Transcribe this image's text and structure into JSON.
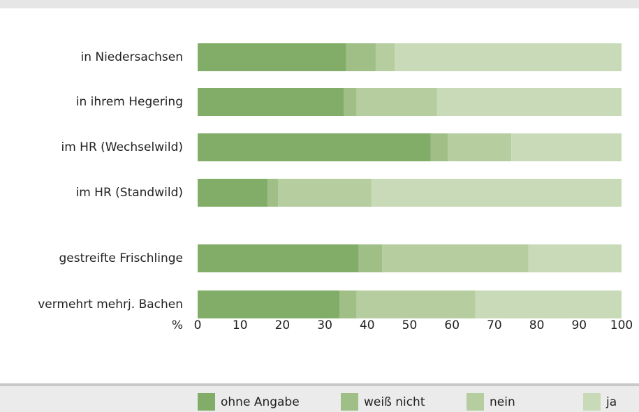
{
  "chart_data": {
    "type": "stacked-bar-horizontal",
    "categories": [
      "in Niedersachsen",
      "in ihrem Hegering",
      "im HR (Wechselwild)",
      "im HR (Standwild)",
      "gestreifte Frischlinge",
      "vermehrt mehrj. Bachen"
    ],
    "series": [
      {
        "name": "ohne Angabe",
        "color": "#82ad68",
        "values": [
          35,
          34.5,
          55,
          16.5,
          38,
          33.5
        ]
      },
      {
        "name": "weiß nicht",
        "color": "#9fbf86",
        "values": [
          7,
          3,
          4,
          2.5,
          5.5,
          4
        ]
      },
      {
        "name": "nein",
        "color": "#b5cd9f",
        "values": [
          4.5,
          19,
          15,
          22,
          34.5,
          28
        ]
      },
      {
        "name": "ja",
        "color": "#c9dab8",
        "values": [
          53.5,
          43.5,
          26,
          59,
          22,
          34.5
        ]
      }
    ],
    "xlabel": "%",
    "xlim": [
      0,
      100
    ],
    "xticks": [
      0,
      10,
      20,
      30,
      40,
      50,
      60,
      70,
      80,
      90,
      100
    ],
    "legend": "bottom"
  }
}
